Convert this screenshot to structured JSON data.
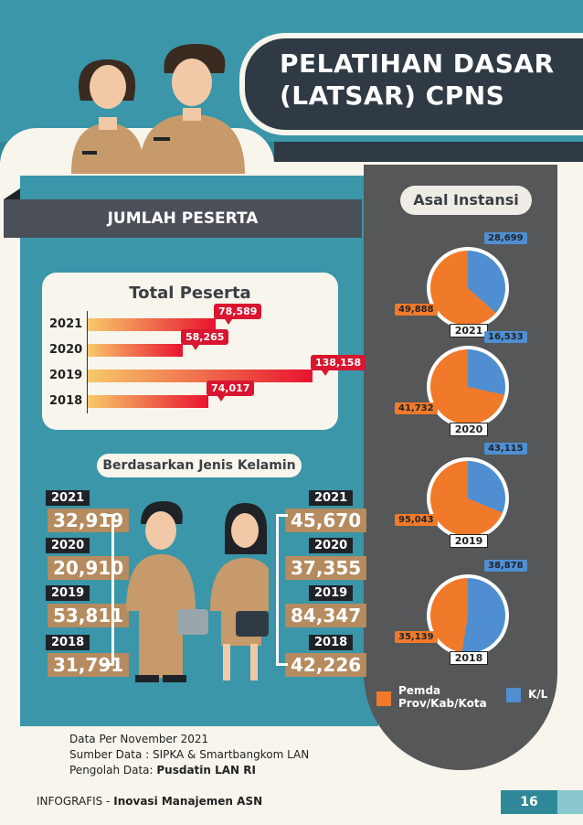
{
  "title": "PELATIHAN DASAR (LATSAR) CPNS",
  "jumlah_peserta": "JUMLAH PESERTA",
  "asal_instansi": "Asal Instansi",
  "total_peserta": {
    "title": "Total Peserta",
    "rows": [
      {
        "year": "2021",
        "value": "78,589",
        "num": 78589
      },
      {
        "year": "2020",
        "value": "58,265",
        "num": 58265
      },
      {
        "year": "2019",
        "value": "138,158",
        "num": 138158
      },
      {
        "year": "2018",
        "value": "74,017",
        "num": 74017
      }
    ]
  },
  "gender": {
    "title": "Berdasarkan Jenis Kelamin",
    "male": [
      {
        "year": "2021",
        "value": "32,919"
      },
      {
        "year": "2020",
        "value": "20,910"
      },
      {
        "year": "2019",
        "value": "53,811"
      },
      {
        "year": "2018",
        "value": "31,791"
      }
    ],
    "female": [
      {
        "year": "2021",
        "value": "45,670"
      },
      {
        "year": "2020",
        "value": "37,355"
      },
      {
        "year": "2019",
        "value": "84,347"
      },
      {
        "year": "2018",
        "value": "42,226"
      }
    ]
  },
  "instansi": [
    {
      "year": "2021",
      "pemda": "49,888",
      "kl": "28,699",
      "pemda_n": 49888,
      "kl_n": 28699
    },
    {
      "year": "2020",
      "pemda": "41,732",
      "kl": "16,533",
      "pemda_n": 41732,
      "kl_n": 16533
    },
    {
      "year": "2019",
      "pemda": "95,043",
      "kl": "43,115",
      "pemda_n": 95043,
      "kl_n": 43115
    },
    {
      "year": "2018",
      "pemda": "35,139",
      "kl": "38,878",
      "pemda_n": 35139,
      "kl_n": 38878
    }
  ],
  "legend": {
    "pemda": "Pemda Prov/Kab/Kota",
    "kl": "K/L",
    "pemda_color": "#f07a2a",
    "kl_color": "#4f8fd1"
  },
  "footer": {
    "line1": "Data Per November 2021",
    "line2": "Sumber Data : SIPKA & Smartbangkom LAN",
    "line3_label": "Pengolah Data: ",
    "line3_value": "Pusdatin LAN RI"
  },
  "bottom": {
    "left": "INFOGRAFIS - ",
    "right": "Inovasi Manajemen ASN",
    "page": "16"
  }
}
